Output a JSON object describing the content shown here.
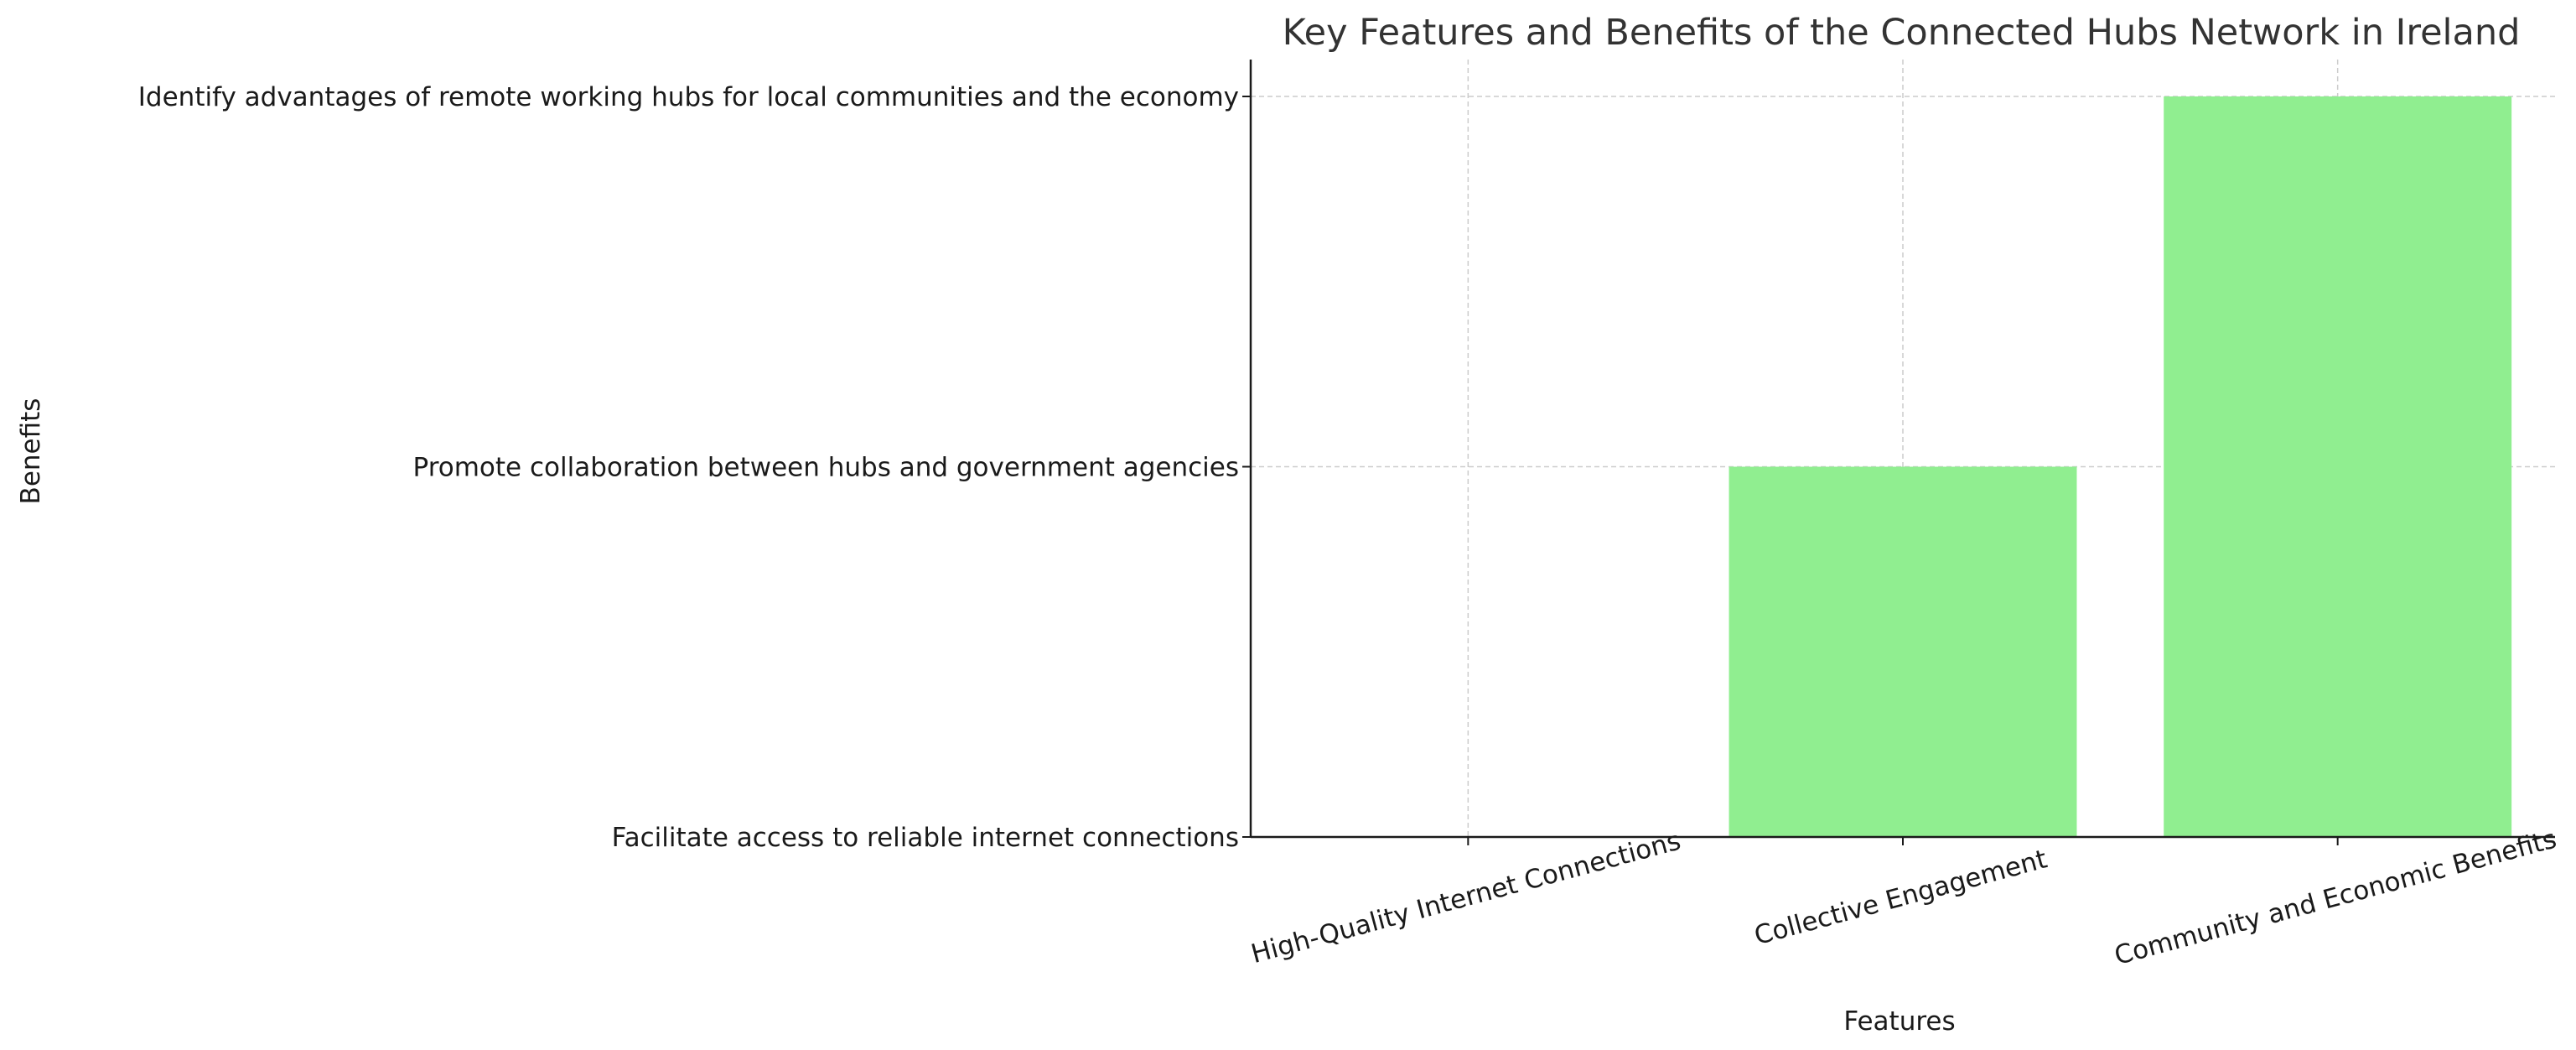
{
  "chart_data": {
    "type": "bar",
    "title": "Key Features and Benefits of the Connected Hubs Network in Ireland",
    "xlabel": "Features",
    "ylabel": "Benefits",
    "categories": [
      "High-Quality Internet Connections",
      "Collective Engagement",
      "Community and Economic Benefits"
    ],
    "y_categories": [
      "Facilitate access to reliable internet connections",
      "Promote collaboration between hubs and government agencies",
      "Identify advantages of remote working hubs for local communities and the economy"
    ],
    "values": [
      0,
      1,
      2
    ],
    "bar_color": "#90ee90",
    "grid": true,
    "x_tick_rotation_deg": -15
  }
}
